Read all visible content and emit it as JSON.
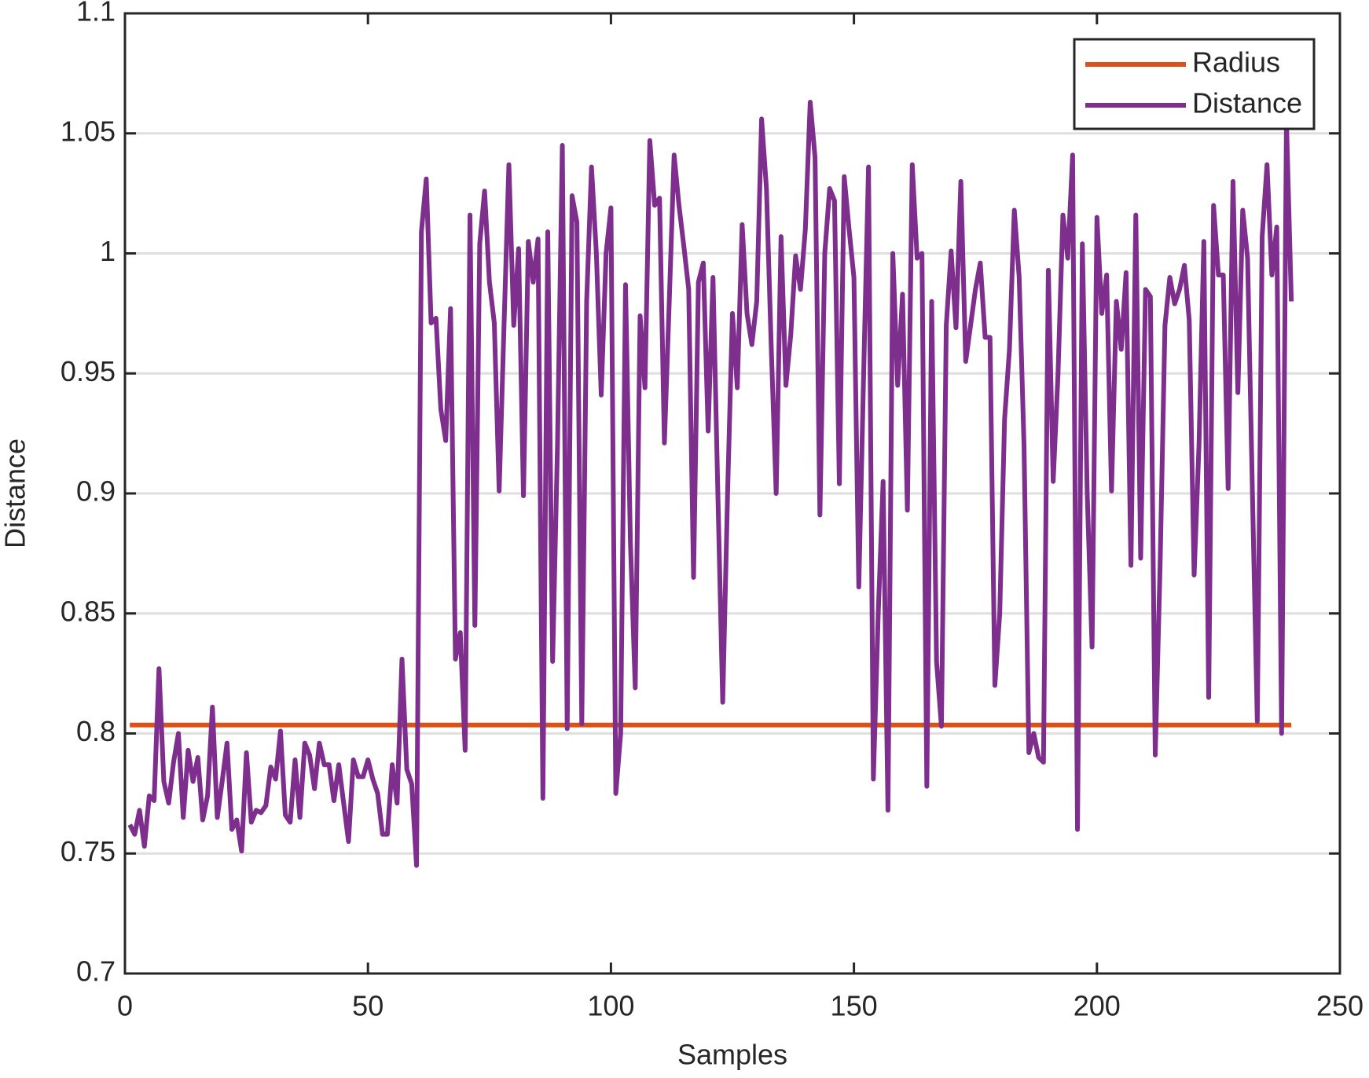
{
  "chart_data": {
    "type": "line",
    "xlabel": "Samples",
    "ylabel": "Distance",
    "xlim": [
      0,
      250
    ],
    "xticks": [
      0,
      50,
      100,
      150,
      200,
      250
    ],
    "ylim": [
      0.7,
      1.1
    ],
    "yticks": [
      0.7,
      0.75,
      0.8,
      0.85,
      0.9,
      0.95,
      1,
      1.05,
      1.1
    ],
    "grid": "y",
    "legend": "northeast",
    "series": [
      {
        "name": "Radius",
        "color": "#d95319",
        "x": [
          1,
          240
        ],
        "values": [
          0.8035,
          0.8035
        ]
      },
      {
        "name": "Distance",
        "color": "#7e2f8e",
        "x": [
          1,
          2,
          3,
          4,
          5,
          6,
          7,
          8,
          9,
          10,
          11,
          12,
          13,
          14,
          15,
          16,
          17,
          18,
          19,
          20,
          21,
          22,
          23,
          24,
          25,
          26,
          27,
          28,
          29,
          30,
          31,
          32,
          33,
          34,
          35,
          36,
          37,
          38,
          39,
          40,
          41,
          42,
          43,
          44,
          45,
          46,
          47,
          48,
          49,
          50,
          51,
          52,
          53,
          54,
          55,
          56,
          57,
          58,
          59,
          60,
          61,
          62,
          63,
          64,
          65,
          66,
          67,
          68,
          69,
          70,
          71,
          72,
          73,
          74,
          75,
          76,
          77,
          78,
          79,
          80,
          81,
          82,
          83,
          84,
          85,
          86,
          87,
          88,
          89,
          90,
          91,
          92,
          93,
          94,
          95,
          96,
          97,
          98,
          99,
          100,
          101,
          102,
          103,
          104,
          105,
          106,
          107,
          108,
          109,
          110,
          111,
          112,
          113,
          114,
          115,
          116,
          117,
          118,
          119,
          120,
          121,
          122,
          123,
          124,
          125,
          126,
          127,
          128,
          129,
          130,
          131,
          132,
          133,
          134,
          135,
          136,
          137,
          138,
          139,
          140,
          141,
          142,
          143,
          144,
          145,
          146,
          147,
          148,
          149,
          150,
          151,
          152,
          153,
          154,
          155,
          156,
          157,
          158,
          159,
          160,
          161,
          162,
          163,
          164,
          165,
          166,
          167,
          168,
          169,
          170,
          171,
          172,
          173,
          174,
          175,
          176,
          177,
          178,
          179,
          180,
          181,
          182,
          183,
          184,
          185,
          186,
          187,
          188,
          189,
          190,
          191,
          192,
          193,
          194,
          195,
          196,
          197,
          198,
          199,
          200,
          201,
          202,
          203,
          204,
          205,
          206,
          207,
          208,
          209,
          210,
          211,
          212,
          213,
          214,
          215,
          216,
          217,
          218,
          219,
          220,
          221,
          222,
          223,
          224,
          225,
          226,
          227,
          228,
          229,
          230,
          231,
          232,
          233,
          234,
          235,
          236,
          237,
          238,
          239,
          240
        ],
        "values": [
          0.762,
          0.758,
          0.768,
          0.753,
          0.774,
          0.772,
          0.827,
          0.78,
          0.771,
          0.788,
          0.8,
          0.765,
          0.793,
          0.78,
          0.79,
          0.764,
          0.774,
          0.811,
          0.765,
          0.78,
          0.796,
          0.76,
          0.764,
          0.751,
          0.792,
          0.763,
          0.768,
          0.767,
          0.77,
          0.786,
          0.781,
          0.801,
          0.766,
          0.763,
          0.789,
          0.765,
          0.796,
          0.791,
          0.777,
          0.796,
          0.787,
          0.787,
          0.772,
          0.787,
          0.771,
          0.755,
          0.789,
          0.782,
          0.782,
          0.789,
          0.781,
          0.775,
          0.758,
          0.758,
          0.787,
          0.771,
          0.831,
          0.785,
          0.779,
          0.745,
          1.009,
          1.031,
          0.971,
          0.973,
          0.935,
          0.922,
          0.977,
          0.831,
          0.842,
          0.793,
          1.016,
          0.845,
          1.004,
          1.026,
          0.988,
          0.971,
          0.901,
          0.97,
          1.037,
          0.97,
          1.002,
          0.899,
          1.005,
          0.988,
          1.006,
          0.773,
          1.009,
          0.83,
          0.92,
          1.045,
          0.802,
          1.024,
          1.013,
          0.804,
          0.98,
          1.036,
          1.0,
          0.941,
          1.0,
          1.019,
          0.775,
          0.8,
          0.987,
          0.88,
          0.819,
          0.974,
          0.944,
          1.047,
          1.02,
          1.023,
          0.921,
          0.98,
          1.041,
          1.02,
          1.003,
          0.985,
          0.865,
          0.988,
          0.996,
          0.926,
          0.99,
          0.9,
          0.813,
          0.9,
          0.975,
          0.944,
          1.012,
          0.975,
          0.962,
          0.98,
          1.056,
          1.027,
          0.96,
          0.9,
          1.007,
          0.945,
          0.966,
          0.999,
          0.985,
          1.01,
          1.063,
          1.04,
          0.891,
          1.0,
          1.027,
          1.022,
          0.904,
          1.032,
          1.01,
          0.99,
          0.861,
          0.95,
          1.036,
          0.781,
          0.85,
          0.905,
          0.768,
          1.0,
          0.945,
          0.983,
          0.893,
          1.037,
          0.998,
          1.0,
          0.778,
          0.98,
          0.83,
          0.803,
          0.97,
          1.001,
          0.969,
          1.03,
          0.955,
          0.97,
          0.985,
          0.996,
          0.965,
          0.965,
          0.82,
          0.85,
          0.931,
          0.96,
          1.018,
          0.99,
          0.92,
          0.792,
          0.8,
          0.79,
          0.788,
          0.993,
          0.905,
          0.95,
          1.016,
          0.998,
          1.041,
          0.76,
          1.004,
          0.9,
          0.836,
          1.015,
          0.975,
          0.991,
          0.901,
          0.98,
          0.96,
          0.992,
          0.87,
          1.016,
          0.873,
          0.985,
          0.982,
          0.791,
          0.87,
          0.97,
          0.99,
          0.979,
          0.985,
          0.995,
          0.972,
          0.866,
          0.92,
          1.005,
          0.815,
          1.02,
          0.991,
          0.991,
          0.902,
          1.03,
          0.942,
          1.018,
          0.998,
          0.9,
          0.805,
          1.007,
          1.037,
          0.991,
          1.011,
          0.8,
          1.055,
          0.98
        ]
      }
    ]
  }
}
